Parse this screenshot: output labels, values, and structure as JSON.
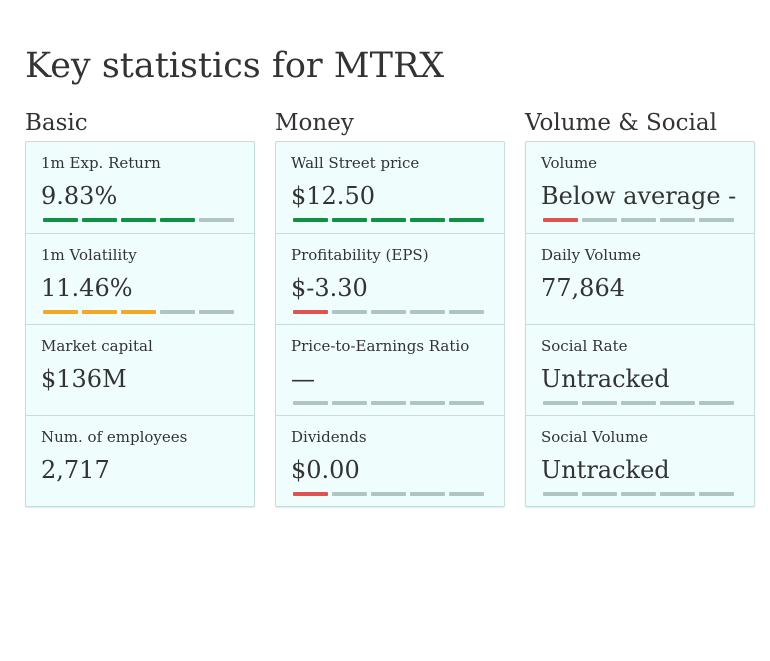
{
  "page": {
    "title": "Key statistics for MTRX"
  },
  "colors": {
    "green": "#0e9242",
    "orange": "#f5a623",
    "red": "#e05252",
    "empty": "#b0c4c4"
  },
  "columns": [
    {
      "title": "Basic",
      "stats": [
        {
          "label": "1m Exp. Return",
          "value": "9.83%",
          "rating": [
            1,
            1,
            1,
            1,
            0
          ],
          "color": "green"
        },
        {
          "label": "1m Volatility",
          "value": "11.46%",
          "rating": [
            1,
            1,
            1,
            0,
            0
          ],
          "color": "orange"
        },
        {
          "label": "Market capital",
          "value": "$136M"
        },
        {
          "label": "Num. of employees",
          "value": "2,717"
        }
      ]
    },
    {
      "title": "Money",
      "stats": [
        {
          "label": "Wall Street price",
          "value": "$12.50",
          "rating": [
            1,
            1,
            1,
            1,
            1
          ],
          "color": "green"
        },
        {
          "label": "Profitability (EPS)",
          "value": "$-3.30",
          "rating": [
            1,
            0,
            0,
            0,
            0
          ],
          "color": "red"
        },
        {
          "label": "Price-to-Earnings Ratio",
          "value": "—",
          "rating": [
            0,
            0,
            0,
            0,
            0
          ],
          "color": "empty"
        },
        {
          "label": "Dividends",
          "value": "$0.00",
          "rating": [
            1,
            0,
            0,
            0,
            0
          ],
          "color": "red"
        }
      ]
    },
    {
      "title": "Volume & Social",
      "stats": [
        {
          "label": "Volume",
          "value": "Below average -",
          "rating": [
            1,
            0,
            0,
            0,
            0
          ],
          "color": "red"
        },
        {
          "label": "Daily Volume",
          "value": "77,864"
        },
        {
          "label": "Social Rate",
          "value": "Untracked",
          "rating": [
            0,
            0,
            0,
            0,
            0
          ],
          "color": "empty"
        },
        {
          "label": "Social Volume",
          "value": "Untracked",
          "rating": [
            0,
            0,
            0,
            0,
            0
          ],
          "color": "empty"
        }
      ]
    }
  ]
}
